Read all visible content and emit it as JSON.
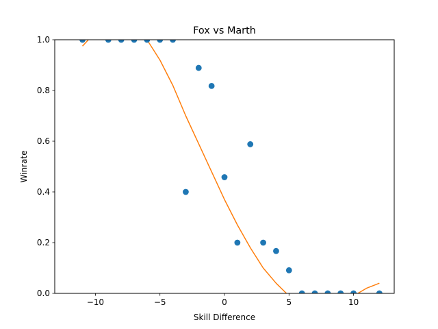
{
  "chart_data": {
    "type": "scatter",
    "title": "Fox vs Marth",
    "xlabel": "Skill Difference",
    "ylabel": "Winrate",
    "xlim": [
      -13.15,
      13.15
    ],
    "ylim": [
      0,
      1
    ],
    "xticks": [
      -10,
      -5,
      0,
      5,
      10
    ],
    "xtick_labels": [
      "−10",
      "−5",
      "0",
      "5",
      "10"
    ],
    "yticks": [
      0,
      0.2,
      0.4,
      0.6,
      0.8,
      1.0
    ],
    "ytick_labels": [
      "0.0",
      "0.2",
      "0.4",
      "0.6",
      "0.8",
      "1.0"
    ],
    "grid": false,
    "series": [
      {
        "kind": "scatter",
        "color": "#1f77b4",
        "x": [
          -11,
          -9,
          -8,
          -7,
          -6,
          -5,
          -4,
          -3,
          -2,
          -1,
          0,
          1,
          2,
          3,
          4,
          5,
          6,
          7,
          8,
          9,
          10,
          12
        ],
        "y": [
          1.0,
          1.0,
          1.0,
          1.0,
          1.0,
          1.0,
          1.0,
          0.4,
          0.889,
          0.818,
          0.458,
          0.2,
          0.588,
          0.2,
          0.167,
          0.091,
          0.0,
          0.0,
          0.0,
          0.0,
          0.0,
          0.0
        ]
      },
      {
        "kind": "line",
        "color": "#ff7f0e",
        "x": [
          -11,
          -10,
          -9,
          -8,
          -7,
          -6,
          -5,
          -4,
          -3,
          -2,
          -1,
          0,
          1,
          2,
          3,
          4,
          5,
          6,
          7,
          8,
          9,
          10,
          11,
          12
        ],
        "y": [
          0.975,
          1.03,
          1.07,
          1.08,
          1.06,
          1.0,
          0.92,
          0.82,
          0.7,
          0.59,
          0.48,
          0.37,
          0.27,
          0.18,
          0.1,
          0.04,
          -0.01,
          -0.04,
          -0.05,
          -0.05,
          -0.035,
          -0.01,
          0.02,
          0.04
        ]
      }
    ]
  }
}
